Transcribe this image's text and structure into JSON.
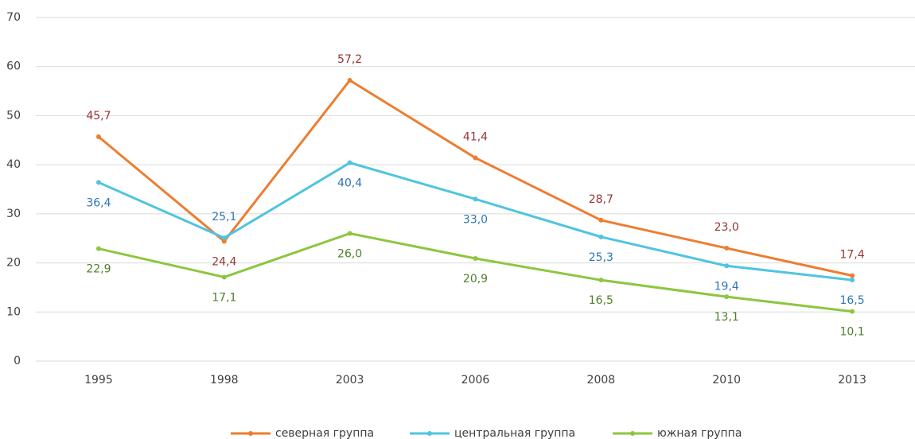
{
  "chart_data": {
    "type": "line",
    "categories": [
      "1995",
      "1998",
      "2003",
      "2006",
      "2008",
      "2010",
      "2013"
    ],
    "series": [
      {
        "name": "северная группа",
        "color": "#ed7d31",
        "label_color": "#943634",
        "values": [
          45.7,
          24.4,
          57.2,
          41.4,
          28.7,
          23.0,
          17.4
        ],
        "value_labels": [
          "45,7",
          "24,4",
          "57,2",
          "41,4",
          "28,7",
          "23,0",
          "17,4"
        ]
      },
      {
        "name": "центральная группа",
        "color": "#4fc4e0",
        "label_color": "#2e75b6",
        "values": [
          36.4,
          25.1,
          40.4,
          33.0,
          25.3,
          19.4,
          16.5
        ],
        "value_labels": [
          "36,4",
          "25,1",
          "40,4",
          "33,0",
          "25,3",
          "19,4",
          "16,5"
        ]
      },
      {
        "name": "южная группа",
        "color": "#8dc63f",
        "label_color": "#4f7f2a",
        "values": [
          22.9,
          17.1,
          26.0,
          20.9,
          16.5,
          13.1,
          10.1
        ],
        "value_labels": [
          "22,9",
          "17,1",
          "26,0",
          "20,9",
          "16,5",
          "13,1",
          "10,1"
        ]
      }
    ],
    "ylim": [
      0,
      70
    ],
    "yticks": [
      0,
      10,
      20,
      30,
      40,
      50,
      60,
      70
    ],
    "grid": true,
    "legend": "bottom"
  }
}
